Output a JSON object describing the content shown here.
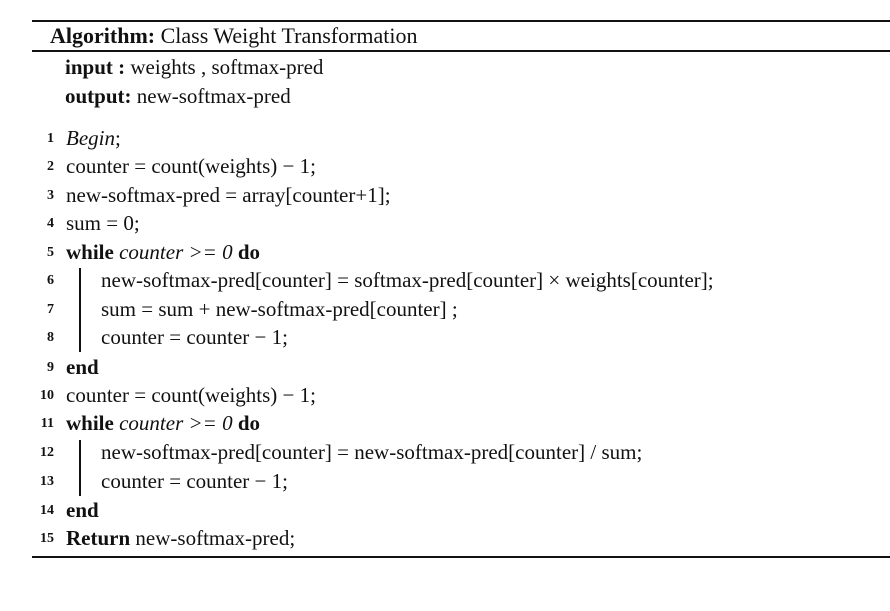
{
  "algorithm": {
    "heading_label": "Algorithm:",
    "heading_name": "Class Weight Transformation",
    "input_label": "input",
    "input_sep": " :",
    "input_value": " weights , softmax-pred",
    "output_label": "output:",
    "output_value": " new-softmax-pred"
  },
  "lines": [
    {
      "num": "1",
      "text": "Begin",
      "suffix": ";"
    },
    {
      "num": "2",
      "text": "counter = count(weights) − 1;"
    },
    {
      "num": "3",
      "text": "new-softmax-pred = array[counter+1];"
    },
    {
      "num": "4",
      "text": "sum = 0;"
    },
    {
      "num": "5",
      "kw1": "while",
      "cond": " counter >= 0 ",
      "kw2": "do"
    },
    {
      "num": "6",
      "text": "new-softmax-pred[counter] = softmax-pred[counter] × weights[counter];"
    },
    {
      "num": "7",
      "text": "sum = sum + new-softmax-pred[counter] ;"
    },
    {
      "num": "8",
      "text": "counter = counter − 1;"
    },
    {
      "num": "9",
      "kw": "end"
    },
    {
      "num": "10",
      "text": "counter = count(weights) − 1;"
    },
    {
      "num": "11",
      "kw1": "while",
      "cond": " counter >= 0 ",
      "kw2": "do"
    },
    {
      "num": "12",
      "text": "new-softmax-pred[counter] = new-softmax-pred[counter] / sum;"
    },
    {
      "num": "13",
      "text": "counter = counter − 1;"
    },
    {
      "num": "14",
      "kw": "end"
    },
    {
      "num": "15",
      "kw": "Return",
      "text": " new-softmax-pred;"
    }
  ]
}
